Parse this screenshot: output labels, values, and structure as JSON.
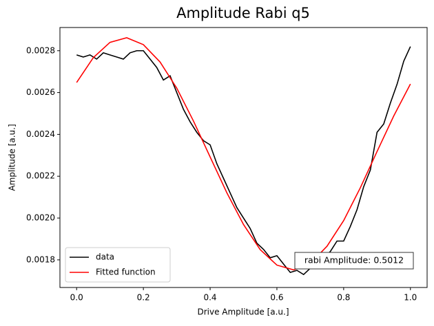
{
  "chart_data": {
    "type": "line",
    "title": "Amplitude Rabi q5",
    "xlabel": "Drive Amplitude [a.u.]",
    "ylabel": "Amplitude [a.u.]",
    "annotation": "rabi Amplitude: 0.5012",
    "xlim": [
      -0.05,
      1.05
    ],
    "ylim": [
      0.001668,
      0.002911
    ],
    "xticks": [
      {
        "value": 0,
        "label": "0.0"
      },
      0.2,
      0.4,
      0.6,
      0.8,
      {
        "value": 1,
        "label": "1.0"
      }
    ],
    "yticks": [
      0.0018,
      {
        "value": 0.002,
        "label": "0.0020"
      },
      0.0022,
      0.0024,
      0.0026,
      0.0028
    ],
    "grid": false,
    "legend": "lower left",
    "series": [
      {
        "name": "data",
        "color": "#000000",
        "x": [
          0,
          0.02,
          0.04,
          0.06,
          0.08,
          0.1,
          0.12,
          0.14,
          0.16,
          0.18,
          0.2,
          0.22,
          0.24,
          0.26,
          0.28,
          0.3,
          0.32,
          0.34,
          0.36,
          0.38,
          0.4,
          0.42,
          0.44,
          0.46,
          0.48,
          0.5,
          0.52,
          0.54,
          0.56,
          0.58,
          0.6,
          0.62,
          0.64,
          0.66,
          0.68,
          0.7,
          0.72,
          0.74,
          0.76,
          0.78,
          0.8,
          0.82,
          0.84,
          0.86,
          0.88,
          0.9,
          0.92,
          0.94,
          0.96,
          0.98,
          1
        ],
        "values": [
          0.00278,
          0.00277,
          0.00278,
          0.00276,
          0.00279,
          0.00278,
          0.00277,
          0.00276,
          0.00279,
          0.0028,
          0.0028,
          0.00276,
          0.00272,
          0.00266,
          0.00268,
          0.0026,
          0.00252,
          0.00246,
          0.00241,
          0.00237,
          0.00235,
          0.00226,
          0.00219,
          0.00212,
          0.00205,
          0.002,
          0.00195,
          0.00188,
          0.00185,
          0.00181,
          0.00182,
          0.00178,
          0.00174,
          0.00175,
          0.00173,
          0.00176,
          0.00178,
          0.00181,
          0.00184,
          0.00189,
          0.00189,
          0.00196,
          0.00204,
          0.00215,
          0.00223,
          0.00241,
          0.00245,
          0.00255,
          0.00264,
          0.00275,
          0.00282
        ]
      },
      {
        "name": "Fitted function",
        "color": "#ff0000",
        "x": [
          0,
          0.05,
          0.1,
          0.15,
          0.2,
          0.25,
          0.3,
          0.35,
          0.4,
          0.45,
          0.5,
          0.55,
          0.6,
          0.65,
          0.7,
          0.75,
          0.8,
          0.85,
          0.9,
          0.95,
          1
        ],
        "values": [
          0.002648,
          0.002767,
          0.00284,
          0.002862,
          0.002829,
          0.002746,
          0.002621,
          0.002464,
          0.002292,
          0.002121,
          0.001969,
          0.001849,
          0.001775,
          0.001752,
          0.001783,
          0.001865,
          0.001988,
          0.002145,
          0.002318,
          0.002488,
          0.002641
        ]
      }
    ]
  }
}
